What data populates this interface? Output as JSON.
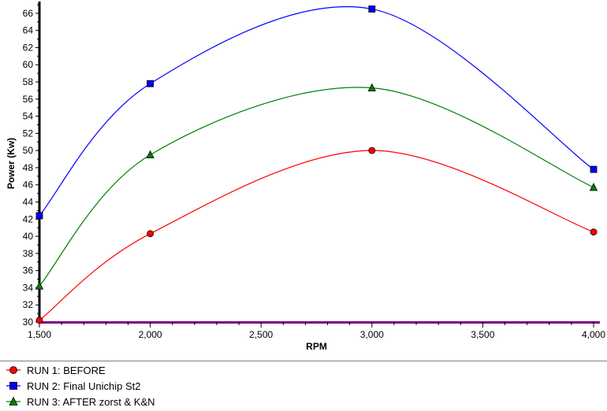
{
  "chart_data": {
    "type": "line",
    "xlabel": "RPM",
    "ylabel": "Power (Kw)",
    "xlim": [
      1500,
      4000
    ],
    "ylim": [
      30,
      67
    ],
    "x_ticks": [
      1500,
      2000,
      2500,
      3000,
      3500,
      4000
    ],
    "x_tick_labels": [
      "1,500",
      "2,000",
      "2,500",
      "3,000",
      "3,500",
      "4,000"
    ],
    "y_ticks": [
      30,
      32,
      34,
      36,
      38,
      40,
      42,
      44,
      46,
      48,
      50,
      52,
      54,
      56,
      58,
      60,
      62,
      64,
      66
    ],
    "grid": false,
    "legend_position": "bottom",
    "series": [
      {
        "name": "RUN 1: BEFORE",
        "color": "#ff0000",
        "marker": "circle",
        "x": [
          1500,
          2000,
          3000,
          4000
        ],
        "y": [
          30.2,
          40.3,
          50.0,
          40.5
        ]
      },
      {
        "name": "RUN 2: Final Unichip St2",
        "color": "#0000ff",
        "marker": "square",
        "x": [
          1500,
          2000,
          3000,
          4000
        ],
        "y": [
          42.4,
          57.8,
          66.5,
          47.8
        ]
      },
      {
        "name": "RUN 3: AFTER zorst & K&N",
        "color": "#008000",
        "marker": "triangle",
        "x": [
          1500,
          2000,
          3000,
          4000
        ],
        "y": [
          34.2,
          49.5,
          57.3,
          45.7
        ]
      }
    ]
  }
}
